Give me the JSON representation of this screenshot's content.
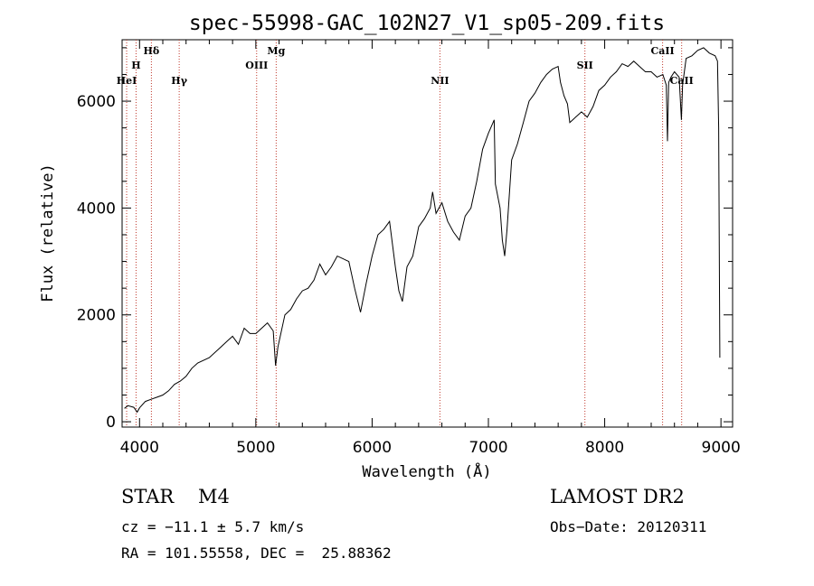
{
  "chart_data": {
    "type": "line",
    "title": "spec-55998-GAC_102N27_V1_sp05-209.fits",
    "xlabel": "Wavelength (Å)",
    "ylabel": "Flux (relative)",
    "xlim": [
      3850,
      9100
    ],
    "ylim": [
      -100,
      7150
    ],
    "x_ticks": [
      4000,
      5000,
      6000,
      7000,
      8000,
      9000
    ],
    "y_ticks": [
      0,
      2000,
      4000,
      6000
    ],
    "grid": false,
    "series": [
      {
        "color": "#000000",
        "x": [
          3870,
          3900,
          3950,
          3980,
          4000,
          4050,
          4100,
          4150,
          4200,
          4250,
          4300,
          4350,
          4400,
          4450,
          4500,
          4600,
          4700,
          4750,
          4800,
          4850,
          4900,
          4950,
          5000,
          5050,
          5100,
          5150,
          5170,
          5190,
          5250,
          5300,
          5350,
          5400,
          5450,
          5500,
          5550,
          5600,
          5650,
          5700,
          5750,
          5800,
          5850,
          5900,
          5950,
          6000,
          6050,
          6100,
          6150,
          6200,
          6230,
          6260,
          6300,
          6350,
          6400,
          6450,
          6500,
          6520,
          6550,
          6600,
          6650,
          6700,
          6750,
          6800,
          6850,
          6900,
          6950,
          7000,
          7050,
          7060,
          7100,
          7120,
          7140,
          7160,
          7200,
          7250,
          7300,
          7350,
          7400,
          7450,
          7500,
          7550,
          7600,
          7620,
          7650,
          7680,
          7700,
          7750,
          7800,
          7850,
          7900,
          7950,
          8000,
          8050,
          8100,
          8150,
          8200,
          8250,
          8300,
          8350,
          8400,
          8450,
          8500,
          8530,
          8540,
          8550,
          8570,
          8600,
          8640,
          8660,
          8670,
          8700,
          8750,
          8800,
          8850,
          8900,
          8950,
          8970,
          8980,
          8990
        ],
        "y": [
          250,
          300,
          270,
          180,
          260,
          380,
          420,
          460,
          500,
          580,
          700,
          760,
          850,
          1000,
          1100,
          1200,
          1400,
          1500,
          1600,
          1450,
          1750,
          1650,
          1650,
          1750,
          1850,
          1700,
          1050,
          1400,
          2000,
          2100,
          2300,
          2450,
          2500,
          2650,
          2950,
          2750,
          2900,
          3100,
          3050,
          3000,
          2500,
          2050,
          2600,
          3100,
          3500,
          3600,
          3750,
          2900,
          2450,
          2250,
          2900,
          3100,
          3650,
          3800,
          4000,
          4300,
          3900,
          4100,
          3750,
          3550,
          3400,
          3850,
          4000,
          4500,
          5100,
          5400,
          5650,
          4450,
          4000,
          3400,
          3100,
          3600,
          4900,
          5200,
          5600,
          6000,
          6150,
          6350,
          6500,
          6600,
          6650,
          6350,
          6100,
          5950,
          5600,
          5700,
          5800,
          5700,
          5900,
          6200,
          6300,
          6450,
          6550,
          6700,
          6650,
          6750,
          6650,
          6550,
          6550,
          6450,
          6500,
          6300,
          5250,
          6350,
          6450,
          6550,
          6450,
          5650,
          6300,
          6800,
          6850,
          6950,
          7000,
          6900,
          6850,
          6750,
          5500,
          1200
        ]
      }
    ],
    "line_markers": [
      {
        "label": "HeI",
        "x": 3889
      },
      {
        "label": "H",
        "x": 3970
      },
      {
        "label": "Hδ",
        "x": 4102
      },
      {
        "label": "Hγ",
        "x": 4341
      },
      {
        "label": "OIII",
        "x": 5007
      },
      {
        "label": "Mg",
        "x": 5175
      },
      {
        "label": "NII",
        "x": 6583
      },
      {
        "label": "SII",
        "x": 7830
      },
      {
        "label": "CaII",
        "x": 8498
      },
      {
        "label": "CaII",
        "x": 8662
      }
    ]
  },
  "info": {
    "object_type": "STAR",
    "subclass": "M4",
    "cz_line": "cz = −11.1 ± 5.7 km/s",
    "radec_line": "RA = 101.55558, DEC =  25.88362",
    "survey": "LAMOST DR2",
    "obs_date_line": "Obs−Date: 20120311"
  }
}
